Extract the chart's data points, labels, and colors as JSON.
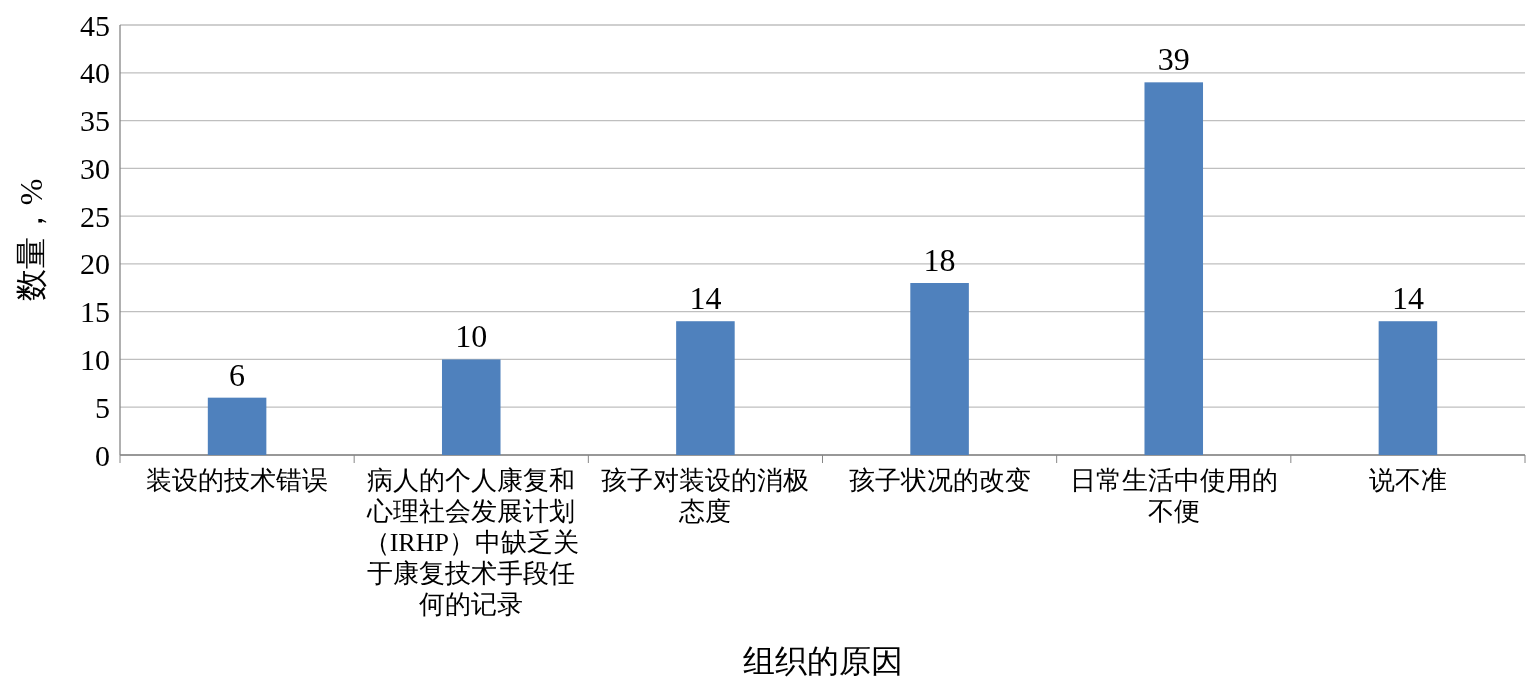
{
  "chart_data": {
    "type": "bar",
    "xlabel": "组织的原因",
    "ylabel": "数量，%",
    "categories": [
      "装设的技术错误",
      "病人的个人康复和心理社会发展计划（IRHP）中缺乏关于康复技术手段任何的记录",
      "孩子对装设的消极态度",
      "孩子状况的改变",
      "日常生活中使用的不便",
      "说不准"
    ],
    "values": [
      6,
      10,
      14,
      18,
      39,
      14
    ],
    "color": "#4f81bd",
    "ylim": [
      0,
      45
    ],
    "yticks": [
      0,
      5,
      10,
      15,
      20,
      25,
      30,
      35,
      40,
      45
    ],
    "grid": "y",
    "data_labels": true
  }
}
